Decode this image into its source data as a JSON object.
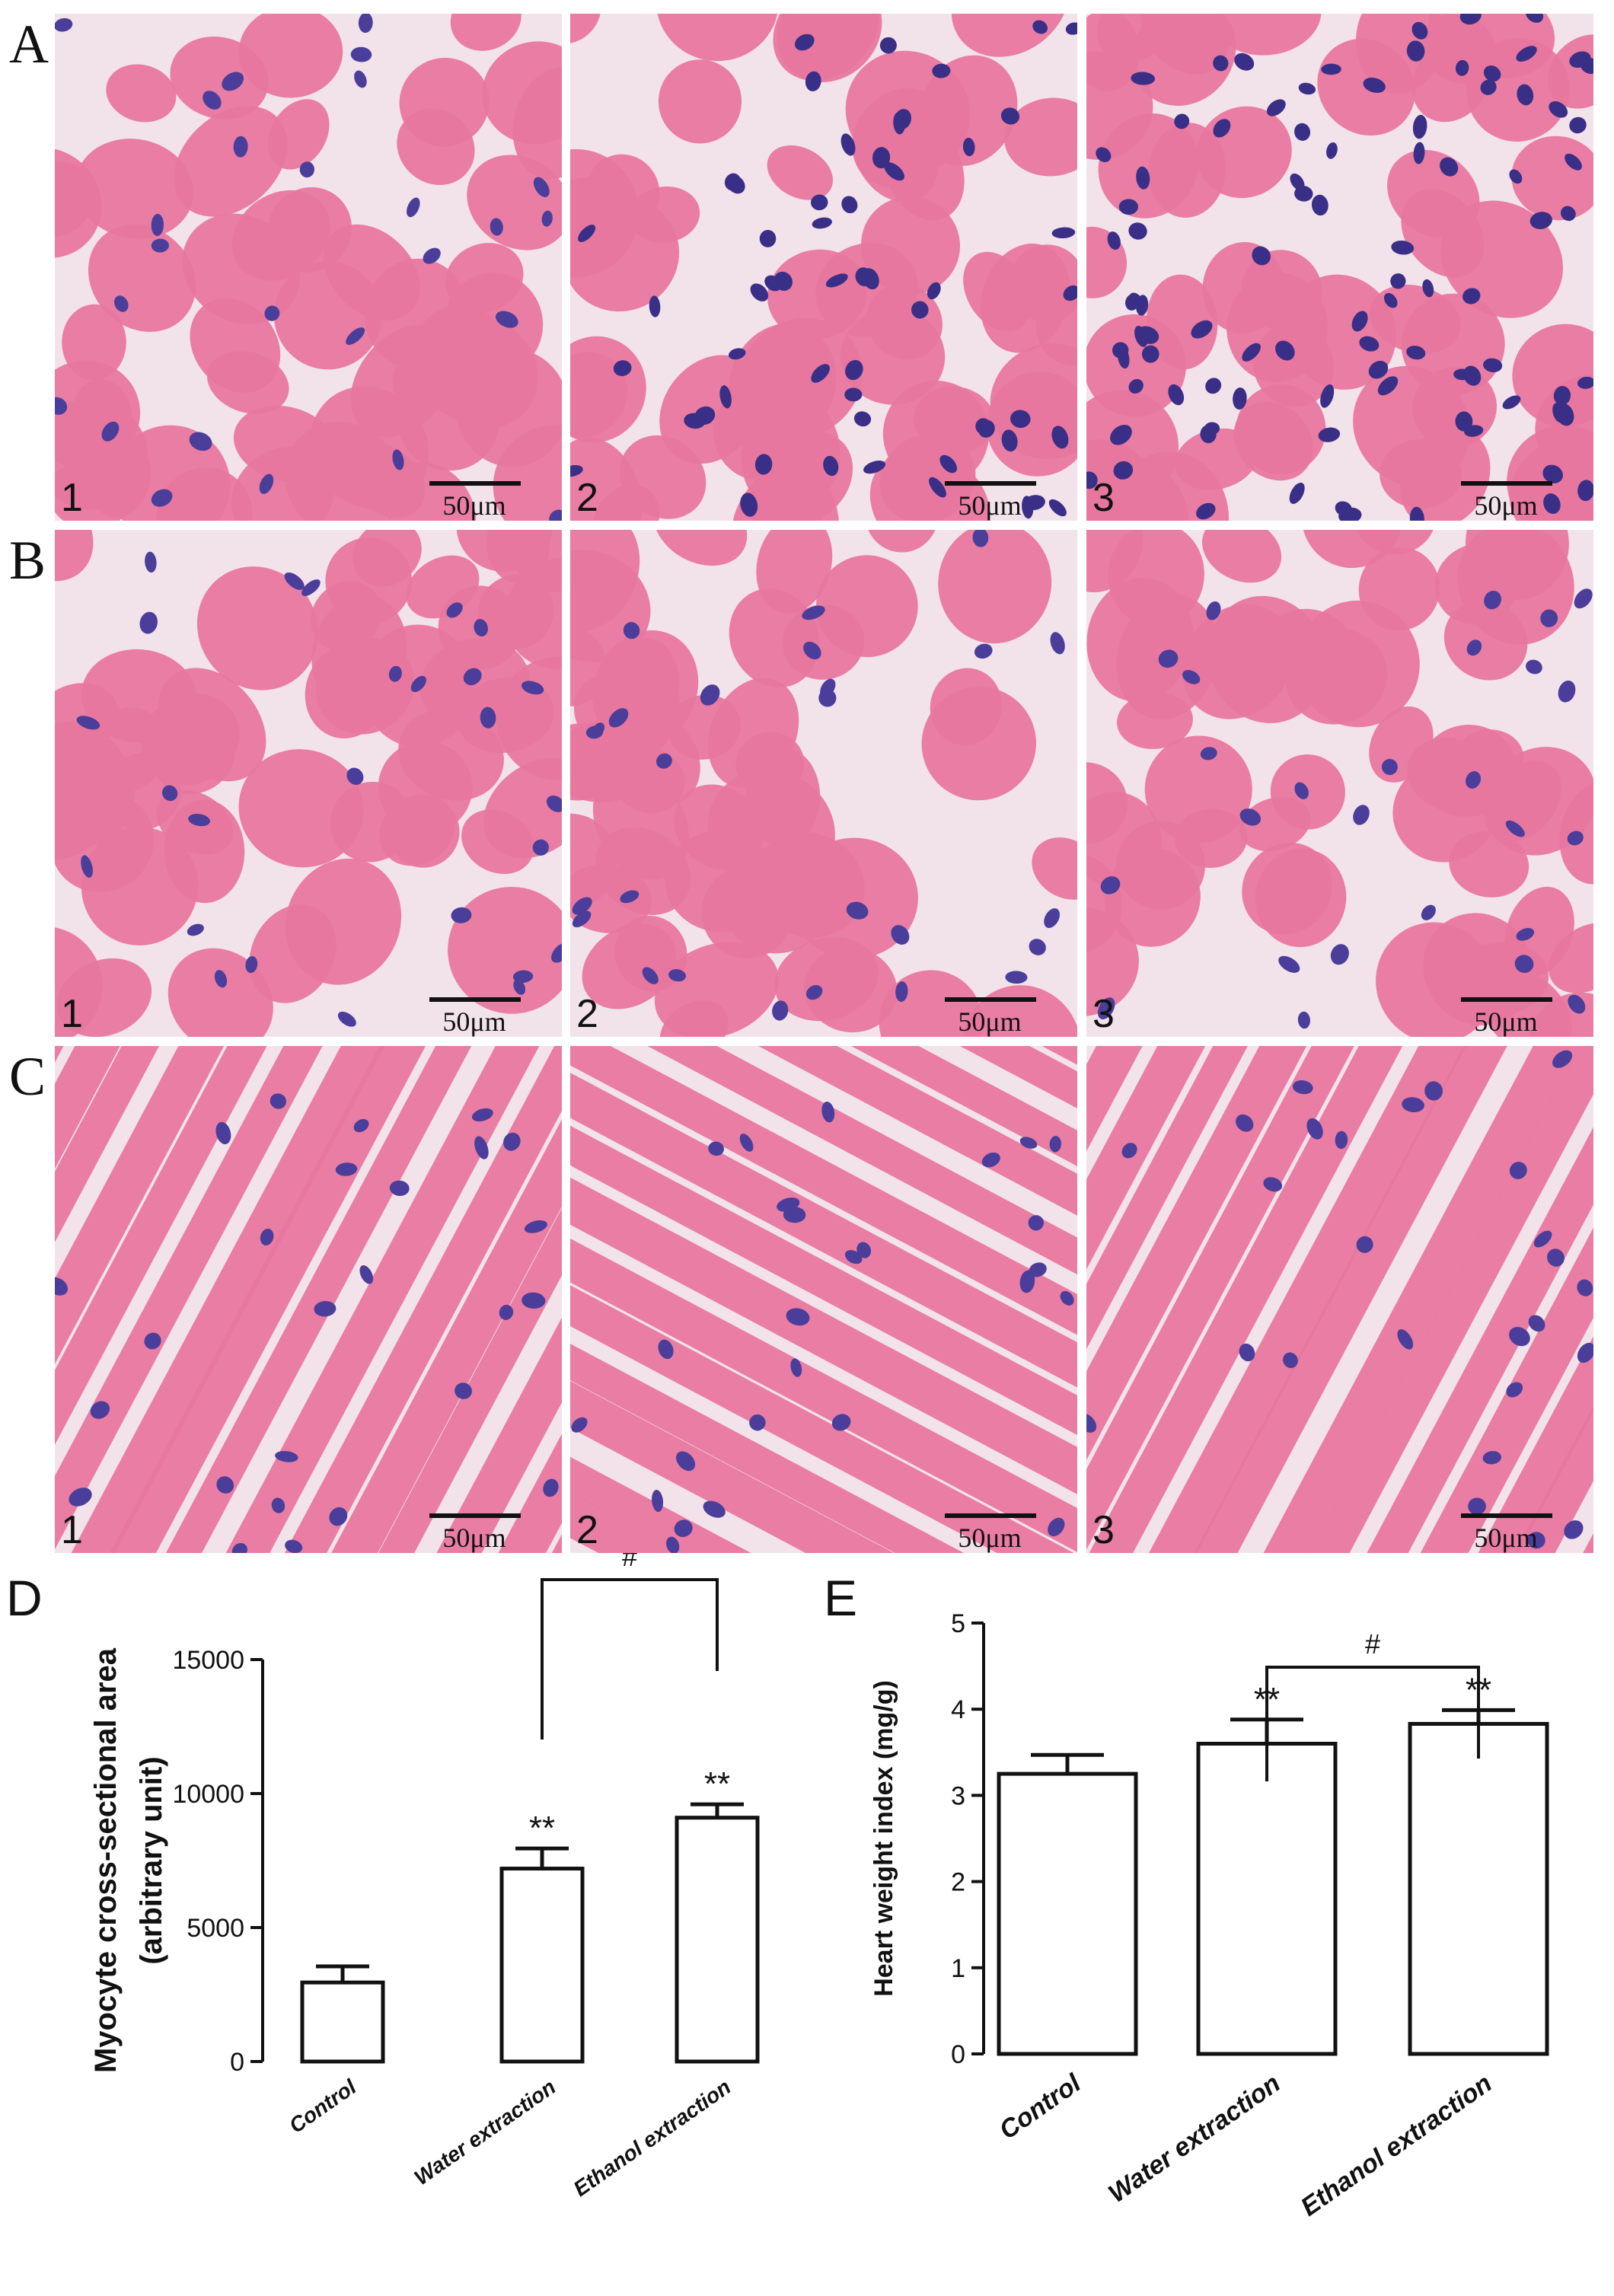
{
  "figure": {
    "row_labels": [
      "A",
      "B",
      "C"
    ],
    "panel_numbers": [
      "1",
      "2",
      "3"
    ],
    "scale_bar_label": "50μm",
    "tissue_colors": {
      "background": "#f2e2ea",
      "myocyte": "#e8779f",
      "nucleus": "#4a3e9a",
      "inflammatory": "#3a2f86"
    }
  },
  "charts": [
    {
      "panel_label": "D",
      "ylabel_line1": "Myocyte cross-sectional area",
      "ylabel_line2": "(arbitrary unit)",
      "ylim": [
        0,
        15000
      ],
      "yticks": [
        "0",
        "5000",
        "10000",
        "15000"
      ],
      "ytick_values": [
        0,
        5000,
        10000,
        15000
      ],
      "significance_marks": [
        "",
        "**",
        "**"
      ],
      "bracket_label": "#",
      "bracket_between": [
        1,
        2
      ],
      "chart_data": {
        "type": "bar",
        "categories": [
          "Control",
          "Water extraction",
          "Ethanol extraction"
        ],
        "values": [
          2950,
          7200,
          9100
        ],
        "errors": [
          600,
          750,
          500
        ],
        "ylim": [
          0,
          15000
        ],
        "grid": false,
        "legend": "none"
      }
    },
    {
      "panel_label": "E",
      "ylabel_line1": "Heart weight index (mg/g)",
      "ylabel_line2": "",
      "ylim": [
        0,
        5
      ],
      "yticks": [
        "0",
        "1",
        "2",
        "3",
        "4",
        "5"
      ],
      "ytick_values": [
        0,
        1,
        2,
        3,
        4,
        5
      ],
      "significance_marks": [
        "",
        "**",
        "**"
      ],
      "bracket_label": "#",
      "bracket_between": [
        1,
        2
      ],
      "chart_data": {
        "type": "bar",
        "categories": [
          "Control",
          "Water extraction",
          "Ethanol extraction"
        ],
        "values": [
          3.25,
          3.6,
          3.83
        ],
        "errors": [
          0.22,
          0.28,
          0.16
        ],
        "ylim": [
          0,
          5
        ],
        "grid": false,
        "legend": "none"
      }
    }
  ]
}
